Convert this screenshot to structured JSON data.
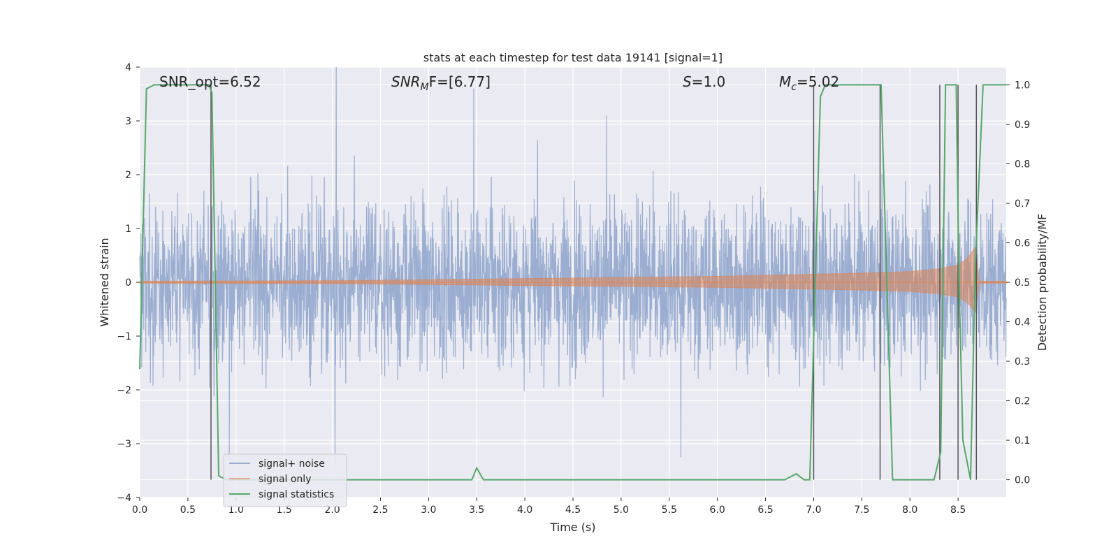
{
  "chart_data": {
    "type": "line",
    "title": "stats at each timestep for test data 19141 [signal=1]",
    "xlabel": "Time (s)",
    "ylabel": "Whitened strain",
    "ylabel_right": "Detection probability/MF",
    "xlim": [
      0.0,
      9.0
    ],
    "ylim": [
      -4.0,
      4.0
    ],
    "ylim_right": [
      -0.045,
      1.045
    ],
    "x_ticks": [
      "0.0",
      "0.5",
      "1.0",
      "1.5",
      "2.0",
      "2.5",
      "3.0",
      "3.5",
      "4.0",
      "4.5",
      "5.0",
      "5.5",
      "6.0",
      "6.5",
      "7.0",
      "7.5",
      "8.0",
      "8.5"
    ],
    "y_ticks": [
      "4",
      "3",
      "2",
      "1",
      "0",
      "−1",
      "−2",
      "−3",
      "−4"
    ],
    "y_right_ticks": [
      "1.0",
      "0.9",
      "0.8",
      "0.7",
      "0.6",
      "0.5",
      "0.4",
      "0.3",
      "0.2",
      "0.1",
      "0.0"
    ],
    "grid": true,
    "legend_placement": "lower-left",
    "annotations": {
      "snr_opt": "SNR_opt=6.52",
      "snr_mf_main": "SNR",
      "snr_mf_sub": "M",
      "snr_mf_rest": "F=[6.77]",
      "s_main": "S",
      "s_rest": "=1.0",
      "mc_main": "M",
      "mc_sub": "c",
      "mc_rest": "=5.02"
    },
    "series": [
      {
        "name": "signal+ noise",
        "color": "#4c72b0",
        "description_values": "noise amplitude envelope approx ±1.5 with peaks up to ~4",
        "noise_envelope": [
          1.5,
          -1.5
        ],
        "peaks": [
          [
            2.04,
            4.0
          ],
          [
            2.03,
            -3.35
          ],
          [
            0.93,
            -3.3
          ],
          [
            3.47,
            3.6
          ],
          [
            4.85,
            3.1
          ],
          [
            5.62,
            -3.25
          ]
        ]
      },
      {
        "name": "signal only",
        "color": "#dd8452",
        "description_values": "chirp envelope growing in time",
        "envelope": [
          [
            0.0,
            0.02
          ],
          [
            2.0,
            0.03
          ],
          [
            3.0,
            0.05
          ],
          [
            4.0,
            0.07
          ],
          [
            5.0,
            0.09
          ],
          [
            6.0,
            0.11
          ],
          [
            7.0,
            0.15
          ],
          [
            7.5,
            0.17
          ],
          [
            8.0,
            0.2
          ],
          [
            8.3,
            0.25
          ],
          [
            8.5,
            0.32
          ],
          [
            8.6,
            0.45
          ],
          [
            8.68,
            0.65
          ],
          [
            8.72,
            0.02
          ],
          [
            9.0,
            0.02
          ]
        ]
      },
      {
        "name": "signal statistics",
        "color": "#55a868",
        "axis": "right",
        "x": [
          0.0,
          0.07,
          0.15,
          0.72,
          0.75,
          0.82,
          0.9,
          3.45,
          3.5,
          3.57,
          6.7,
          6.82,
          6.9,
          6.96,
          7.07,
          7.12,
          7.7,
          7.82,
          8.25,
          8.32,
          8.37,
          8.48,
          8.51,
          8.55,
          8.63,
          8.68,
          8.76,
          8.8,
          9.0
        ],
        "y": [
          0.28,
          0.99,
          1.0,
          1.0,
          0.98,
          0.01,
          0.0,
          0.0,
          0.03,
          0.0,
          0.0,
          0.015,
          0.0,
          0.0,
          0.97,
          1.0,
          1.0,
          0.0,
          0.0,
          0.07,
          1.0,
          1.0,
          0.5,
          0.1,
          0.0,
          0.55,
          1.0,
          1.0,
          1.0
        ]
      }
    ],
    "vertical_markers": [
      0.74,
      7.0,
      7.69,
      8.31,
      8.5,
      8.69
    ]
  },
  "legend": {
    "items": [
      "signal+ noise",
      "signal only",
      "signal statistics"
    ]
  }
}
